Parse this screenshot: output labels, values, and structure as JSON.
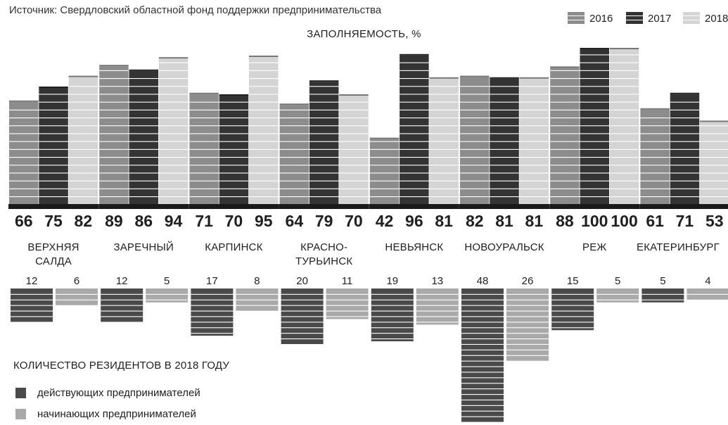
{
  "source": "Источник: Свердловский областной фонд поддержки предпринимательства",
  "chart_title": "ЗАПОЛНЯЕМОСТЬ, %",
  "residents_title": "КОЛИЧЕСТВО РЕЗИДЕНТОВ В 2018 ГОДУ",
  "colors": {
    "2016": "#8c8c8c",
    "2017": "#333333",
    "2018": "#d4d4d4",
    "active": "#4a4a4a",
    "beginning": "#a9a9a9",
    "axis": "#1a1a1a"
  },
  "legend_years": [
    "2016",
    "2017",
    "2018"
  ],
  "residents_legend": [
    "действующих предпринимателей",
    "начинающих предпринимателей"
  ],
  "chart_data": [
    {
      "type": "bar",
      "title": "ЗАПОЛНЯЕМОСТЬ, %",
      "categories": [
        "ВЕРХНЯЯ САЛДА",
        "ЗАРЕЧНЫЙ",
        "КАРПИНСК",
        "КРАСНО-ТУРЬИНСК",
        "НЕВЬЯНСК",
        "НОВОУРАЛЬСК",
        "РЕЖ",
        "ЕКАТЕРИНБУРГ"
      ],
      "category_lines": [
        [
          "ВЕРХНЯЯ",
          "САЛДА"
        ],
        [
          "ЗАРЕЧНЫЙ"
        ],
        [
          "КАРПИНСК"
        ],
        [
          "КРАСНО-",
          "ТУРЬИНСК"
        ],
        [
          "НЕВЬЯНСК"
        ],
        [
          "НОВОУРАЛЬСК"
        ],
        [
          "РЕЖ"
        ],
        [
          "ЕКАТЕРИНБУРГ"
        ]
      ],
      "series": [
        {
          "name": "2016",
          "values": [
            66,
            89,
            71,
            64,
            42,
            82,
            88,
            61
          ]
        },
        {
          "name": "2017",
          "values": [
            75,
            86,
            70,
            79,
            96,
            81,
            100,
            71
          ]
        },
        {
          "name": "2018",
          "values": [
            82,
            94,
            95,
            70,
            81,
            81,
            100,
            53
          ]
        }
      ],
      "ylim": [
        0,
        100
      ],
      "legend": "top-right"
    },
    {
      "type": "bar",
      "title": "КОЛИЧЕСТВО РЕЗИДЕНТОВ В 2018 ГОДУ",
      "categories": [
        "ВЕРХНЯЯ САЛДА",
        "ЗАРЕЧНЫЙ",
        "КАРПИНСК",
        "КРАСНО-ТУРЬИНСК",
        "НЕВЬЯНСК",
        "НОВОУРАЛЬСК",
        "РЕЖ",
        "ЕКАТЕРИНБУРГ"
      ],
      "series": [
        {
          "name": "действующих предпринимателей",
          "values": [
            12,
            12,
            17,
            20,
            19,
            48,
            15,
            5
          ]
        },
        {
          "name": "начинающих предпринимателей",
          "values": [
            6,
            5,
            8,
            11,
            13,
            26,
            5,
            4
          ]
        }
      ],
      "orientation": "downward",
      "legend": "bottom-left"
    }
  ]
}
